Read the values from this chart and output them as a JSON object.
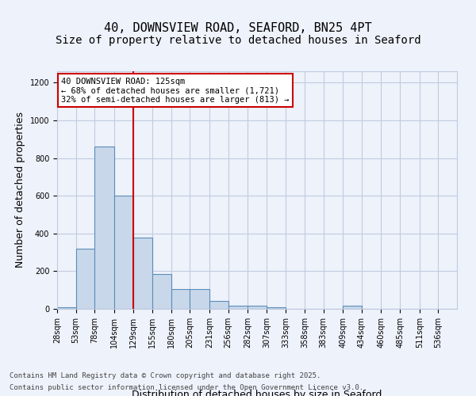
{
  "title1": "40, DOWNSVIEW ROAD, SEAFORD, BN25 4PT",
  "title2": "Size of property relative to detached houses in Seaford",
  "xlabel": "Distribution of detached houses by size in Seaford",
  "ylabel": "Number of detached properties",
  "footer1": "Contains HM Land Registry data © Crown copyright and database right 2025.",
  "footer2": "Contains public sector information licensed under the Open Government Licence v3.0.",
  "annotation_line1": "40 DOWNSVIEW ROAD: 125sqm",
  "annotation_line2": "← 68% of detached houses are smaller (1,721)",
  "annotation_line3": "32% of semi-detached houses are larger (813) →",
  "bar_edges": [
    28,
    53,
    78,
    104,
    129,
    155,
    180,
    205,
    231,
    256,
    282,
    307,
    333,
    358,
    383,
    409,
    434,
    460,
    485,
    511,
    536,
    561
  ],
  "bar_heights": [
    10,
    320,
    860,
    600,
    380,
    185,
    105,
    105,
    40,
    15,
    15,
    10,
    0,
    0,
    0,
    15,
    0,
    0,
    0,
    0,
    0
  ],
  "bar_color": "#c8d8ea",
  "bar_edge_color": "#5b8db8",
  "bar_linewidth": 0.8,
  "red_line_x": 129,
  "ylim": [
    0,
    1260
  ],
  "yticks": [
    0,
    200,
    400,
    600,
    800,
    1000,
    1200
  ],
  "bg_color": "#eef2fb",
  "plot_bg_color": "#eef2fb",
  "grid_color": "#c0cce0",
  "annotation_box_color": "#cc0000",
  "title_fontsize": 11,
  "subtitle_fontsize": 10,
  "tick_fontsize": 7,
  "label_fontsize": 9
}
